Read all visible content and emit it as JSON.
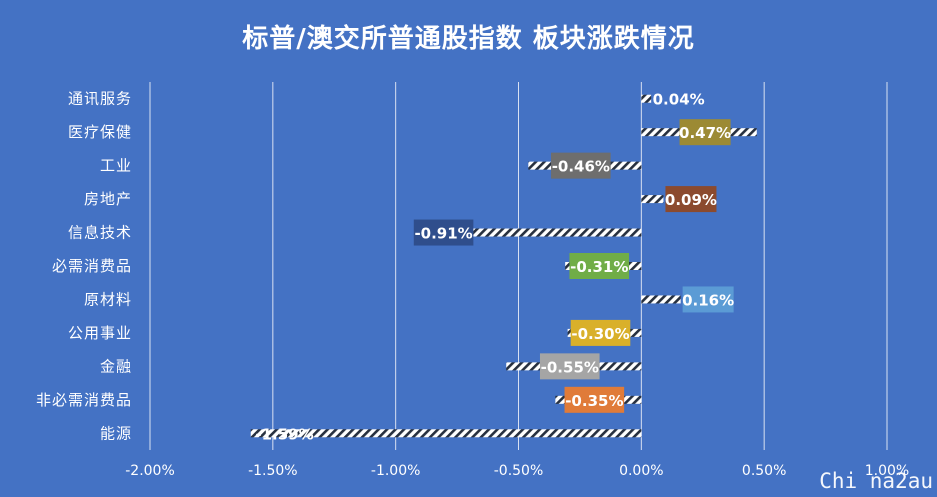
{
  "chart_data": {
    "type": "bar",
    "orientation": "horizontal",
    "title": "标普/澳交所普通股指数 板块涨跌情况",
    "categories": [
      "通讯服务",
      "医疗保健",
      "工业",
      "房地产",
      "信息技术",
      "必需消费品",
      "原材料",
      "公用事业",
      "金融",
      "非必需消费品",
      "能源"
    ],
    "values": [
      0.04,
      0.47,
      -0.46,
      0.09,
      -0.91,
      -0.31,
      0.16,
      -0.3,
      -0.55,
      -0.35,
      -1.59
    ],
    "data_labels": [
      "0.04%",
      "0.47%",
      "-0.46%",
      "0.09%",
      "-0.91%",
      "-0.31%",
      "0.16%",
      "-0.30%",
      "-0.55%",
      "-0.35%",
      "-1.59%"
    ],
    "label_colors": [
      "#4472C4",
      "#9C8A34",
      "#6E6E6E",
      "#8B4A2E",
      "#2F4E8C",
      "#70AD47",
      "#5B9BD5",
      "#D9B02A",
      "#A5A5A5",
      "#E07B39",
      "#4472C4"
    ],
    "xlim": [
      -2.0,
      1.0
    ],
    "xticks": [
      -2.0,
      -1.5,
      -1.0,
      -0.5,
      0.0,
      0.5,
      1.0
    ],
    "xtick_labels": [
      "-2.00%",
      "-1.50%",
      "-1.00%",
      "-0.50%",
      "0.00%",
      "0.50%",
      "1.00%"
    ],
    "grid": true,
    "bar_pattern": "diagonal-hatch",
    "background_color": "#4472C4"
  },
  "watermark": "Chi na2au"
}
